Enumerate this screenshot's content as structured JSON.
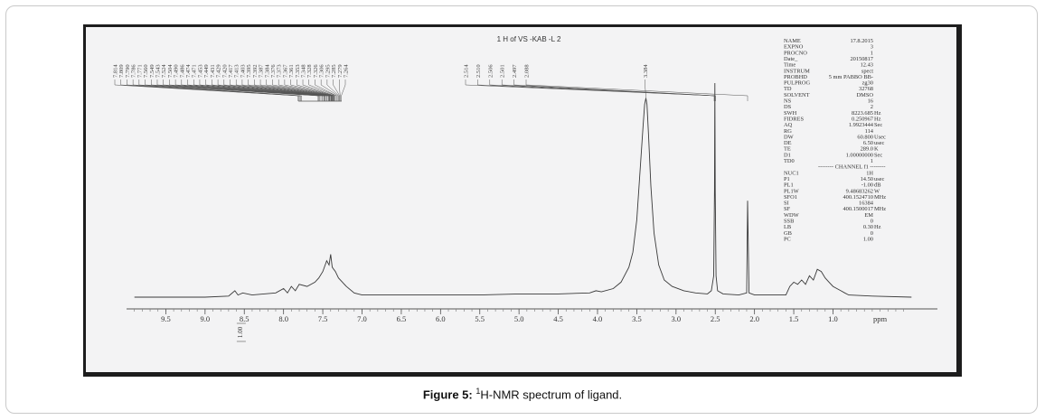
{
  "figure": {
    "label": "Figure 5:",
    "superscript": "1",
    "text": "H-NMR spectrum of ligand."
  },
  "chart_data": {
    "type": "line",
    "title": "1 H of VS -KAB -L 2",
    "xlabel": "ppm",
    "x_reversed": true,
    "xlim": [
      10.0,
      -0.1
    ],
    "ylim": [
      0,
      1
    ],
    "x_ticks": [
      "9.5",
      "9.0",
      "8.5",
      "8.0",
      "7.5",
      "7.0",
      "6.5",
      "6.0",
      "5.5",
      "5.0",
      "4.5",
      "4.0",
      "3.5",
      "3.0",
      "2.5",
      "2.0",
      "1.5",
      "1.0"
    ],
    "integral_label": "1.00",
    "peak_labels_aromatic": [
      "7.814",
      "7.809",
      "7.790",
      "7.786",
      "7.771",
      "7.560",
      "7.549",
      "7.543",
      "7.524",
      "7.504",
      "7.490",
      "7.486",
      "7.474",
      "7.471",
      "7.453",
      "7.449",
      "7.431",
      "7.429",
      "7.420",
      "7.417",
      "7.413",
      "7.403",
      "7.395",
      "7.392",
      "7.387",
      "7.384",
      "7.376",
      "7.373",
      "7.367",
      "7.361",
      "7.353",
      "7.348",
      "7.328",
      "7.326",
      "7.306",
      "7.295",
      "7.285",
      "7.279",
      "7.264"
    ],
    "peak_labels_water": [
      "3.384"
    ],
    "peak_labels_dmso": [
      "2.514",
      "2.510",
      "2.506",
      "2.501",
      "2.497",
      "2.088"
    ],
    "spectrum": {
      "x": [
        9.9,
        9.0,
        8.7,
        8.62,
        8.58,
        8.52,
        8.4,
        8.1,
        8.0,
        7.95,
        7.9,
        7.85,
        7.8,
        7.7,
        7.6,
        7.55,
        7.5,
        7.45,
        7.42,
        7.4,
        7.38,
        7.36,
        7.34,
        7.3,
        7.25,
        7.2,
        7.1,
        7.0,
        6.5,
        6.0,
        5.5,
        5.0,
        4.5,
        4.1,
        4.02,
        3.95,
        3.8,
        3.7,
        3.6,
        3.55,
        3.5,
        3.46,
        3.42,
        3.4,
        3.384,
        3.37,
        3.35,
        3.32,
        3.28,
        3.22,
        3.15,
        3.05,
        2.9,
        2.75,
        2.6,
        2.55,
        2.52,
        2.51,
        2.505,
        2.5,
        2.49,
        2.47,
        2.4,
        2.2,
        2.1,
        2.088,
        2.07,
        2.0,
        1.8,
        1.6,
        1.55,
        1.5,
        1.45,
        1.4,
        1.35,
        1.3,
        1.25,
        1.2,
        1.15,
        1.1,
        1.05,
        1.0,
        0.95,
        0.9,
        0.85,
        0.8,
        0.5,
        0.0
      ],
      "y": [
        0.0,
        0.0,
        0.005,
        0.03,
        0.01,
        0.02,
        0.01,
        0.02,
        0.04,
        0.02,
        0.05,
        0.03,
        0.06,
        0.05,
        0.07,
        0.09,
        0.12,
        0.17,
        0.15,
        0.2,
        0.14,
        0.13,
        0.12,
        0.09,
        0.07,
        0.05,
        0.02,
        0.01,
        0.01,
        0.01,
        0.01,
        0.015,
        0.015,
        0.02,
        0.03,
        0.025,
        0.04,
        0.07,
        0.14,
        0.21,
        0.36,
        0.58,
        0.8,
        0.9,
        0.93,
        0.9,
        0.76,
        0.52,
        0.3,
        0.15,
        0.08,
        0.05,
        0.03,
        0.02,
        0.015,
        0.03,
        0.1,
        0.5,
        1.0,
        0.5,
        0.1,
        0.03,
        0.015,
        0.01,
        0.02,
        0.45,
        0.02,
        0.01,
        0.01,
        0.01,
        0.05,
        0.07,
        0.06,
        0.08,
        0.06,
        0.1,
        0.08,
        0.13,
        0.12,
        0.09,
        0.07,
        0.05,
        0.04,
        0.03,
        0.02,
        0.01,
        0.005,
        0.0
      ]
    },
    "acquisition_params": [
      {
        "name": "NAME",
        "value": "17.8.2015",
        "unit": ""
      },
      {
        "name": "EXPNO",
        "value": "3",
        "unit": ""
      },
      {
        "name": "PROCNO",
        "value": "1",
        "unit": ""
      },
      {
        "name": "Date_",
        "value": "20150817",
        "unit": ""
      },
      {
        "name": "Time",
        "value": "12.43",
        "unit": ""
      },
      {
        "name": "INSTRUM",
        "value": "spect",
        "unit": ""
      },
      {
        "name": "PROBHD",
        "value": "5 mm PABBO BB-",
        "unit": ""
      },
      {
        "name": "PULPROG",
        "value": "zg30",
        "unit": ""
      },
      {
        "name": "TD",
        "value": "32768",
        "unit": ""
      },
      {
        "name": "SOLVENT",
        "value": "DMSO",
        "unit": ""
      },
      {
        "name": "NS",
        "value": "16",
        "unit": ""
      },
      {
        "name": "DS",
        "value": "2",
        "unit": ""
      },
      {
        "name": "SWH",
        "value": "8223.685",
        "unit": "Hz"
      },
      {
        "name": "FIDRES",
        "value": "0.250967",
        "unit": "Hz"
      },
      {
        "name": "AQ",
        "value": "1.9923444",
        "unit": "Sec"
      },
      {
        "name": "RG",
        "value": "114",
        "unit": ""
      },
      {
        "name": "DW",
        "value": "60.800",
        "unit": "Usec"
      },
      {
        "name": "DE",
        "value": "6.50",
        "unit": "usec"
      },
      {
        "name": "TE",
        "value": "289.0",
        "unit": "K"
      },
      {
        "name": "D1",
        "value": "1.00000000",
        "unit": "Sec"
      },
      {
        "name": "TD0",
        "value": "1",
        "unit": ""
      }
    ],
    "channel_header": "CHANNEL f1",
    "channel_params": [
      {
        "name": "NUC1",
        "value": "1H",
        "unit": ""
      },
      {
        "name": "P1",
        "value": "14.50",
        "unit": "usec"
      },
      {
        "name": "PL1",
        "value": "-1.00",
        "unit": "dB"
      },
      {
        "name": "PL1W",
        "value": "9.48683262",
        "unit": "W"
      },
      {
        "name": "SFO1",
        "value": "400.1524710",
        "unit": "MHz"
      },
      {
        "name": "SI",
        "value": "16384",
        "unit": ""
      },
      {
        "name": "SF",
        "value": "400.1500017",
        "unit": "MHz"
      },
      {
        "name": "WDW",
        "value": "EM",
        "unit": ""
      },
      {
        "name": "SSB",
        "value": "0",
        "unit": ""
      },
      {
        "name": "LB",
        "value": "0.30",
        "unit": "Hz"
      },
      {
        "name": "GB",
        "value": "0",
        "unit": ""
      },
      {
        "name": "PC",
        "value": "1.00",
        "unit": ""
      }
    ],
    "colors": {
      "trace": "#3a3a3a",
      "paper": "#f3f3f4",
      "scan_border": "#1d1d1d"
    }
  }
}
